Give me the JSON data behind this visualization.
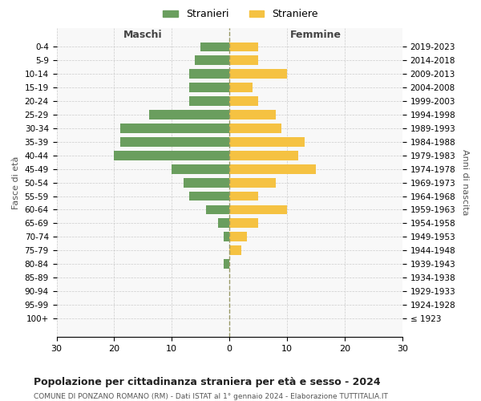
{
  "age_groups": [
    "100+",
    "95-99",
    "90-94",
    "85-89",
    "80-84",
    "75-79",
    "70-74",
    "65-69",
    "60-64",
    "55-59",
    "50-54",
    "45-49",
    "40-44",
    "35-39",
    "30-34",
    "25-29",
    "20-24",
    "15-19",
    "10-14",
    "5-9",
    "0-4"
  ],
  "birth_years": [
    "≤ 1923",
    "1924-1928",
    "1929-1933",
    "1934-1938",
    "1939-1943",
    "1944-1948",
    "1949-1953",
    "1954-1958",
    "1959-1963",
    "1964-1968",
    "1969-1973",
    "1974-1978",
    "1979-1983",
    "1984-1988",
    "1989-1993",
    "1994-1998",
    "1999-2003",
    "2004-2008",
    "2009-2013",
    "2014-2018",
    "2019-2023"
  ],
  "males": [
    0,
    0,
    0,
    0,
    1,
    0,
    1,
    2,
    4,
    7,
    8,
    10,
    20,
    19,
    19,
    14,
    7,
    7,
    7,
    6,
    5
  ],
  "females": [
    0,
    0,
    0,
    0,
    0,
    2,
    3,
    5,
    10,
    5,
    8,
    15,
    12,
    13,
    9,
    8,
    5,
    4,
    10,
    5,
    5
  ],
  "male_color": "#6a9e5e",
  "female_color": "#f5c242",
  "background_color": "#f8f8f8",
  "grid_color": "#cccccc",
  "title": "Popolazione per cittadinanza straniera per età e sesso - 2024",
  "subtitle": "COMUNE DI PONZANO ROMANO (RM) - Dati ISTAT al 1° gennaio 2024 - Elaborazione TUTTITALIA.IT",
  "xlabel_left": "Maschi",
  "xlabel_right": "Femmine",
  "ylabel_left": "Fasce di età",
  "ylabel_right": "Anni di nascita",
  "legend_male": "Stranieri",
  "legend_female": "Straniere",
  "xlim": 30
}
